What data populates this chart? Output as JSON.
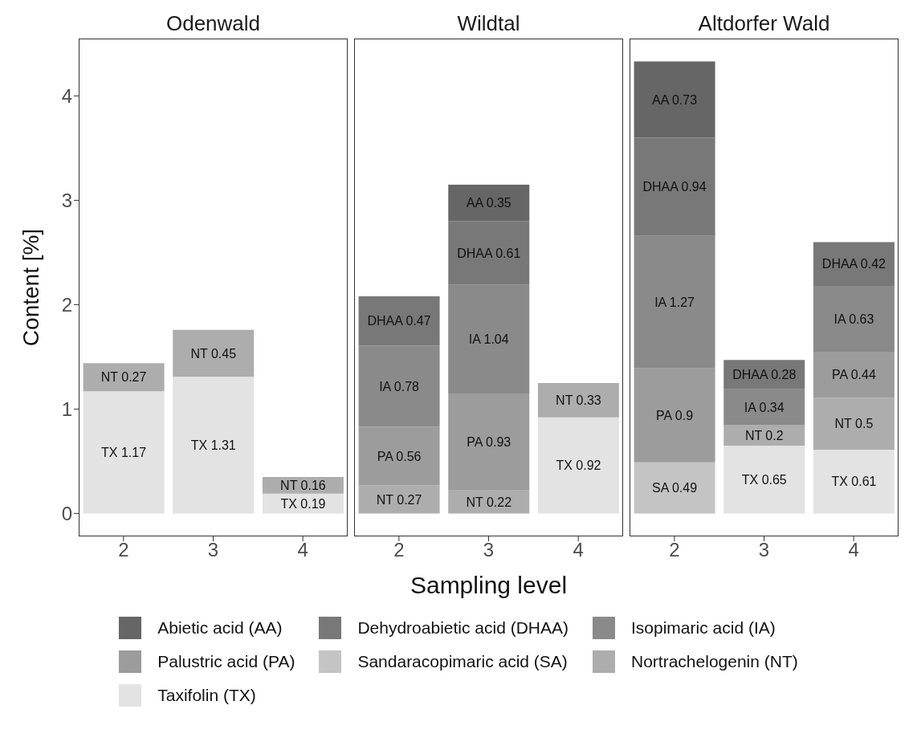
{
  "chart_data": [
    {
      "type": "bar",
      "title": "Odenwald",
      "ylabel": "Content [%]",
      "stacked": true,
      "categories": [
        "2",
        "3",
        "4"
      ],
      "ylim": [
        -0.22,
        4.55
      ],
      "yticks": [
        0,
        1,
        2,
        3,
        4
      ],
      "grid": false,
      "series": [
        {
          "color": "#e3e3e3",
          "values": [
            1.17,
            1.31,
            0.19
          ],
          "value_labels": [
            "TX 1.17",
            "TX 1.31",
            "TX 0.19"
          ]
        },
        {
          "color": "#adadad",
          "values": [
            0.27,
            0.45,
            0.16
          ],
          "value_labels": [
            "NT 0.27",
            "NT 0.45",
            "NT 0.16"
          ]
        }
      ]
    },
    {
      "type": "bar",
      "title": "Wildtal",
      "xlabel": "Sampling level",
      "stacked": true,
      "categories": [
        "2",
        "3",
        "4"
      ],
      "ylim": [
        -0.22,
        4.55
      ],
      "yticks": [
        0,
        1,
        2,
        3,
        4
      ],
      "grid": false,
      "tick_labels": "x",
      "series": [
        {
          "color": "#e3e3e3",
          "values": [
            null,
            null,
            0.92
          ],
          "value_labels": [
            null,
            null,
            "TX 0.92"
          ]
        },
        {
          "color": "#adadad",
          "values": [
            0.27,
            0.22,
            0.33
          ],
          "value_labels": [
            "NT 0.27",
            "NT 0.22",
            "NT 0.33"
          ]
        },
        {
          "color": "#9c9c9c",
          "values": [
            0.56,
            0.93,
            null
          ],
          "value_labels": [
            "PA 0.56",
            "PA 0.93",
            null
          ]
        },
        {
          "color": "#8a8a8a",
          "values": [
            0.78,
            1.04,
            null
          ],
          "value_labels": [
            "IA 0.78",
            "IA 1.04",
            null
          ]
        },
        {
          "color": "#787878",
          "values": [
            0.47,
            0.61,
            null
          ],
          "value_labels": [
            "DHAA 0.47",
            "DHAA 0.61",
            null
          ]
        },
        {
          "color": "#666666",
          "values": [
            null,
            0.35,
            null
          ],
          "value_labels": [
            null,
            "AA 0.35",
            null
          ]
        }
      ]
    },
    {
      "type": "bar",
      "title": "Altdorfer Wald",
      "stacked": true,
      "categories": [
        "2",
        "3",
        "4"
      ],
      "ylim": [
        -0.22,
        4.55
      ],
      "yticks": [
        0,
        1,
        2,
        3,
        4
      ],
      "grid": false,
      "tick_labels": "x",
      "legend": "bottom",
      "series": [
        {
          "name": "Taxifolin (TX)",
          "color": "#e3e3e3",
          "values": [
            null,
            0.65,
            0.61
          ],
          "value_labels": [
            null,
            "TX 0.65",
            "TX 0.61"
          ]
        },
        {
          "name": "Nortrachelogenin (NT)",
          "color": "#adadad",
          "values": [
            null,
            0.2,
            0.5
          ],
          "value_labels": [
            null,
            "NT 0.2",
            "NT 0.5"
          ]
        },
        {
          "name": "Sandaracopimaric acid (SA)",
          "color": "#c4c4c4",
          "values": [
            0.49,
            null,
            null
          ],
          "value_labels": [
            "SA 0.49",
            null,
            null
          ]
        },
        {
          "name": "Palustric acid (PA)",
          "color": "#9c9c9c",
          "values": [
            0.9,
            null,
            0.44
          ],
          "value_labels": [
            "PA 0.9",
            null,
            "PA 0.44"
          ]
        },
        {
          "name": "Isopimaric acid (IA)",
          "color": "#8a8a8a",
          "values": [
            1.27,
            0.34,
            0.63
          ],
          "value_labels": [
            "IA 1.27",
            "IA 0.34",
            "IA 0.63"
          ]
        },
        {
          "name": "Dehydroabietic acid (DHAA)",
          "color": "#787878",
          "values": [
            0.94,
            0.28,
            0.42
          ],
          "value_labels": [
            "DHAA 0.94",
            "DHAA 0.28",
            "DHAA 0.42"
          ]
        },
        {
          "name": "Abietic acid (AA)",
          "color": "#666666",
          "values": [
            0.73,
            null,
            null
          ],
          "value_labels": [
            "AA 0.73",
            null,
            null
          ]
        }
      ]
    }
  ]
}
